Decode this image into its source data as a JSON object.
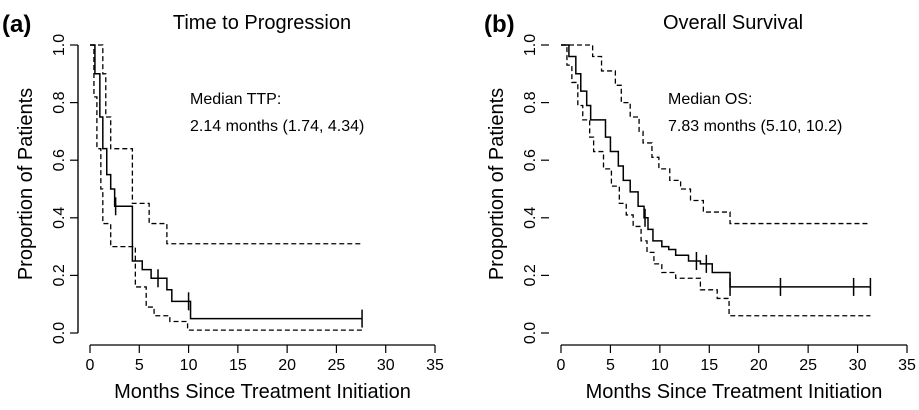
{
  "chart_data": [
    {
      "type": "line",
      "panel_label": "(a)",
      "title": "Time to Progression",
      "xlabel": "Months Since Treatment Initiation",
      "ylabel": "Proportion of Patients",
      "xlim": [
        0,
        35
      ],
      "ylim": [
        0,
        1
      ],
      "xticks": [
        "0",
        "5",
        "10",
        "15",
        "20",
        "25",
        "30",
        "35"
      ],
      "yticks": [
        "0.0",
        "0.2",
        "0.4",
        "0.6",
        "0.8",
        "1.0"
      ],
      "annotation": [
        "Median TTP:",
        "2.14 months (1.74, 4.34)"
      ],
      "grid": false,
      "series": [
        {
          "style": "solid",
          "step": true,
          "x": [
            0,
            0.5,
            1.0,
            1.3,
            1.7,
            2.1,
            2.5,
            3.5,
            4.3,
            5.3,
            6.2,
            7.0,
            7.8,
            8.3,
            9.8,
            10.2,
            27.6
          ],
          "y": [
            1.0,
            0.9,
            0.75,
            0.64,
            0.55,
            0.5,
            0.44,
            0.44,
            0.25,
            0.22,
            0.19,
            0.19,
            0.15,
            0.11,
            0.11,
            0.05,
            0.05
          ],
          "censor_x": [
            2.6,
            6.9,
            10.0,
            27.6
          ]
        },
        {
          "style": "dashed",
          "step": true,
          "x": [
            0,
            1.0,
            1.3,
            1.6,
            2.1,
            2.4,
            4.3,
            5.0,
            6.0,
            7.0,
            7.8,
            27.6
          ],
          "y": [
            1.0,
            1.0,
            0.9,
            0.75,
            0.64,
            0.64,
            0.45,
            0.45,
            0.38,
            0.38,
            0.31,
            0.31
          ]
        },
        {
          "style": "dashed",
          "step": true,
          "x": [
            0,
            0.4,
            0.7,
            1.1,
            1.3,
            2.1,
            4.0,
            4.6,
            5.7,
            6.5,
            8.1,
            9.9,
            27.6
          ],
          "y": [
            1.0,
            0.82,
            0.64,
            0.5,
            0.38,
            0.3,
            0.3,
            0.16,
            0.09,
            0.06,
            0.04,
            0.01,
            0.01
          ]
        }
      ]
    },
    {
      "type": "line",
      "panel_label": "(b)",
      "title": "Overall Survival",
      "xlabel": "Months Since Treatment Initiation",
      "ylabel": "Proportion of Patients",
      "xlim": [
        0,
        35
      ],
      "ylim": [
        0,
        1
      ],
      "xticks": [
        "0",
        "5",
        "10",
        "15",
        "20",
        "25",
        "30",
        "35"
      ],
      "yticks": [
        "0.0",
        "0.2",
        "0.4",
        "0.6",
        "0.8",
        "1.0"
      ],
      "annotation": [
        "Median OS:",
        "7.83 months (5.10, 10.2)"
      ],
      "grid": false,
      "series": [
        {
          "style": "solid",
          "step": true,
          "x": [
            0,
            0.8,
            1.5,
            2.0,
            2.6,
            3.0,
            4.5,
            5.0,
            5.8,
            6.3,
            7.0,
            7.8,
            8.4,
            8.8,
            9.3,
            10.2,
            10.9,
            11.6,
            12.9,
            14.1,
            15.3,
            17.1,
            31.3
          ],
          "y": [
            1.0,
            0.96,
            0.9,
            0.84,
            0.79,
            0.74,
            0.68,
            0.63,
            0.58,
            0.53,
            0.49,
            0.44,
            0.4,
            0.36,
            0.32,
            0.3,
            0.29,
            0.27,
            0.25,
            0.24,
            0.21,
            0.16,
            0.16
          ],
          "censor_x": [
            8.5,
            13.7,
            14.7,
            17.1,
            22.2,
            29.6,
            31.3
          ]
        },
        {
          "style": "dashed",
          "step": true,
          "x": [
            0,
            2.7,
            3.2,
            4.1,
            5.5,
            6.1,
            7.0,
            7.9,
            8.3,
            9.2,
            9.9,
            11.0,
            12.1,
            13.1,
            14.4,
            17.1,
            31.3
          ],
          "y": [
            1.0,
            1.0,
            0.96,
            0.91,
            0.86,
            0.8,
            0.75,
            0.7,
            0.66,
            0.61,
            0.57,
            0.53,
            0.5,
            0.46,
            0.42,
            0.38,
            0.38
          ]
        },
        {
          "style": "dashed",
          "step": true,
          "x": [
            0,
            0.6,
            1.1,
            1.7,
            2.2,
            2.9,
            3.3,
            4.3,
            5.1,
            5.9,
            6.6,
            7.3,
            8.1,
            8.7,
            9.4,
            10.2,
            11.6,
            14.1,
            15.8,
            17.0,
            31.3
          ],
          "y": [
            1.0,
            0.93,
            0.87,
            0.79,
            0.74,
            0.68,
            0.63,
            0.57,
            0.51,
            0.45,
            0.41,
            0.37,
            0.32,
            0.28,
            0.24,
            0.21,
            0.19,
            0.15,
            0.12,
            0.06,
            0.06
          ]
        }
      ]
    }
  ]
}
